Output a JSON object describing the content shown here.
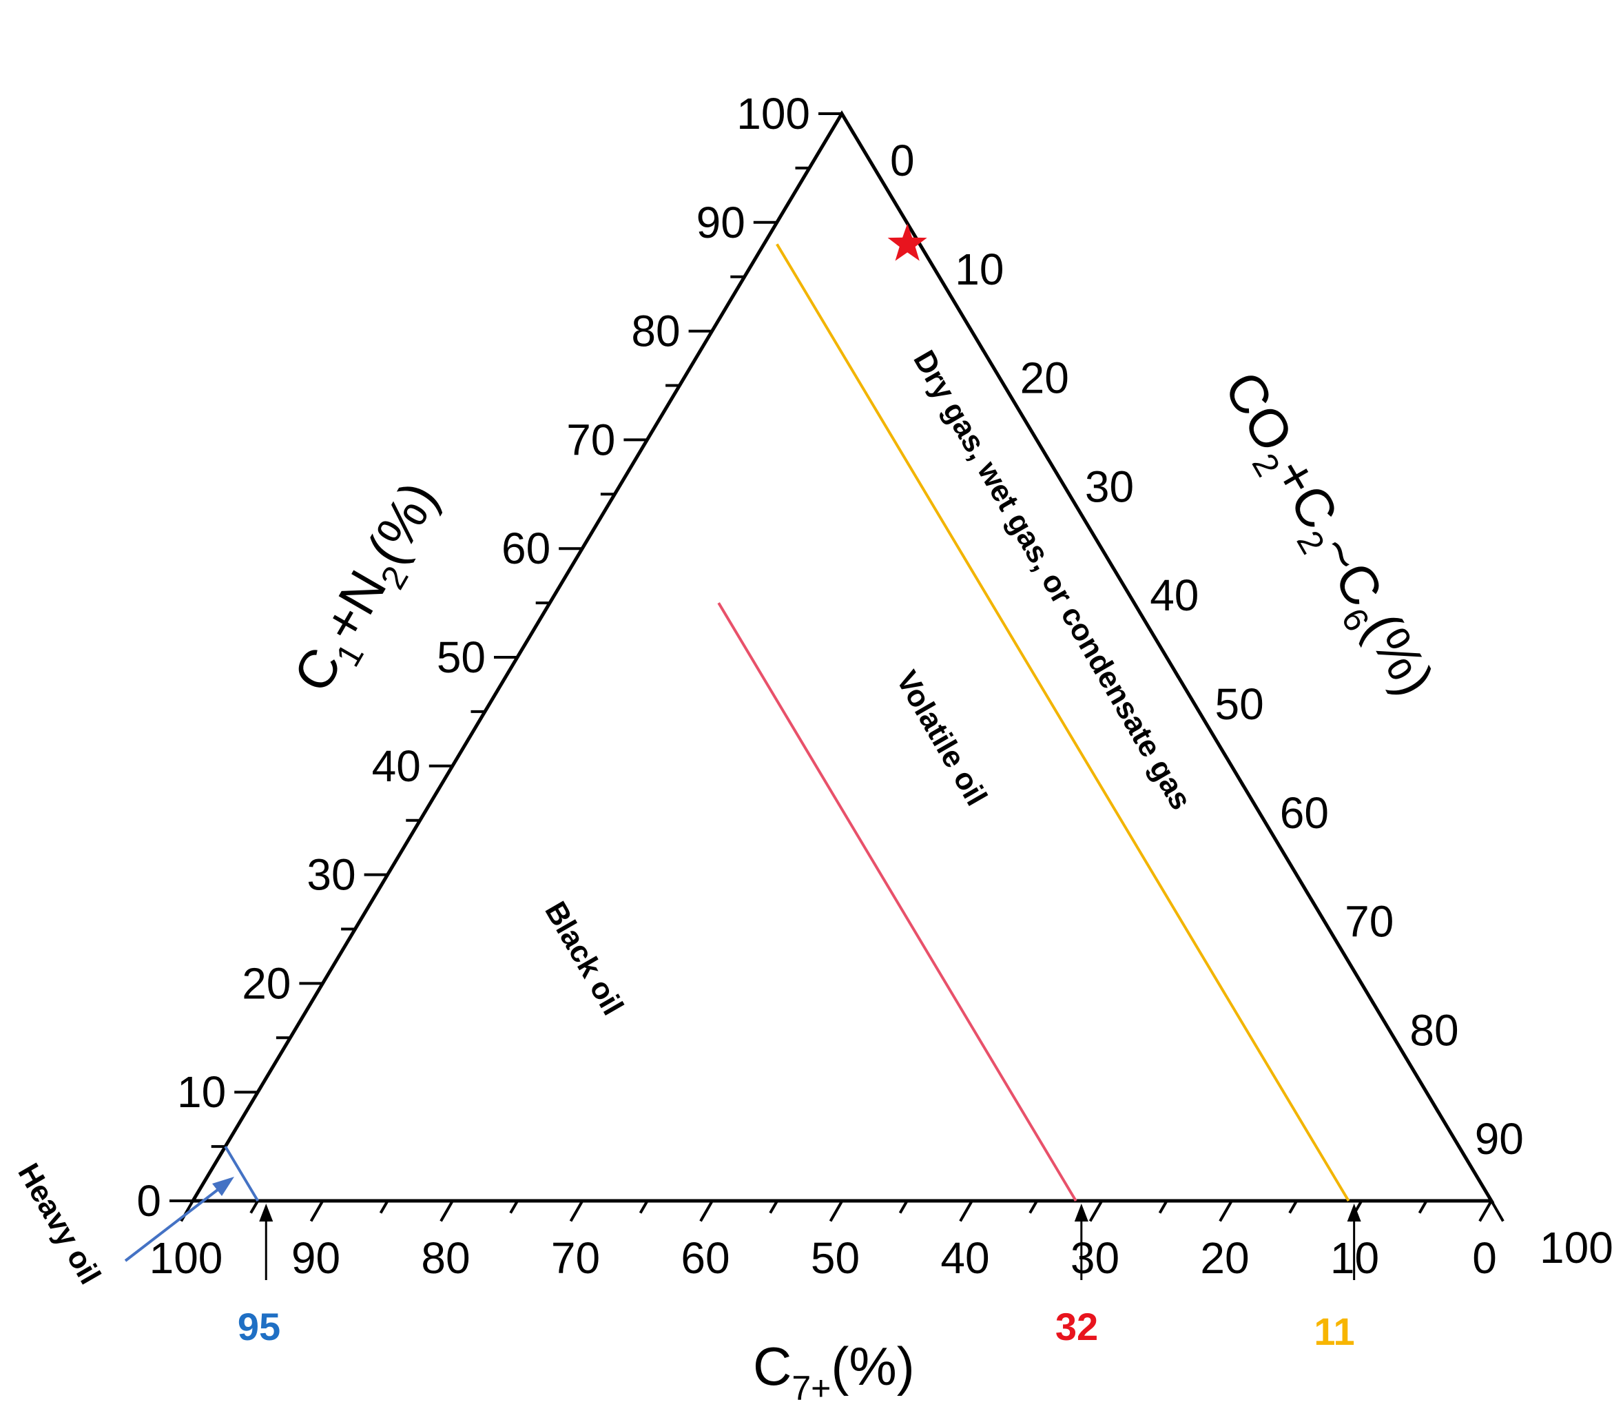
{
  "chart_data": {
    "type": "ternary",
    "axes": {
      "left": {
        "label_main": "C",
        "label_sub1": "1",
        "label_mid": "+N",
        "label_sub2": "2",
        "label_end": "(%)",
        "ticks": [
          "0",
          "10",
          "20",
          "30",
          "40",
          "50",
          "60",
          "70",
          "80",
          "90",
          "100"
        ]
      },
      "right": {
        "label_main": "CO",
        "label_sub1": "2",
        "label_mid": "+C",
        "label_sub2": "2",
        "label_mid2": "~C",
        "label_sub3": "6",
        "label_end": "(%)",
        "ticks": [
          "0",
          "10",
          "20",
          "30",
          "40",
          "50",
          "60",
          "70",
          "80",
          "90",
          "100"
        ]
      },
      "bottom": {
        "label_main": "C",
        "label_sub": "7+",
        "label_end": "(%)",
        "ticks": [
          "100",
          "90",
          "80",
          "70",
          "60",
          "50",
          "40",
          "30",
          "20",
          "10",
          "0"
        ]
      }
    },
    "boundaries": [
      {
        "c7_plus": 95,
        "color": "#4472c4"
      },
      {
        "c7_plus": 32,
        "color": "#e8516a"
      },
      {
        "c7_plus": 11,
        "color": "#f2b400"
      }
    ],
    "markers": [
      {
        "value": "95",
        "color": "#1f6fc4"
      },
      {
        "value": "32",
        "color": "#e8141e"
      },
      {
        "value": "11",
        "color": "#f7b500"
      }
    ],
    "regions": [
      {
        "label": "Black oil"
      },
      {
        "label": "Volatile oil"
      },
      {
        "label": "Dry gas, wet gas, or condensate gas"
      },
      {
        "label": "Heavy oil"
      }
    ],
    "points": [
      {
        "c1_n2": 88,
        "co2_c2_c6": 12,
        "c7_plus": 0,
        "symbol": "star",
        "color": "#e8141e"
      }
    ]
  }
}
